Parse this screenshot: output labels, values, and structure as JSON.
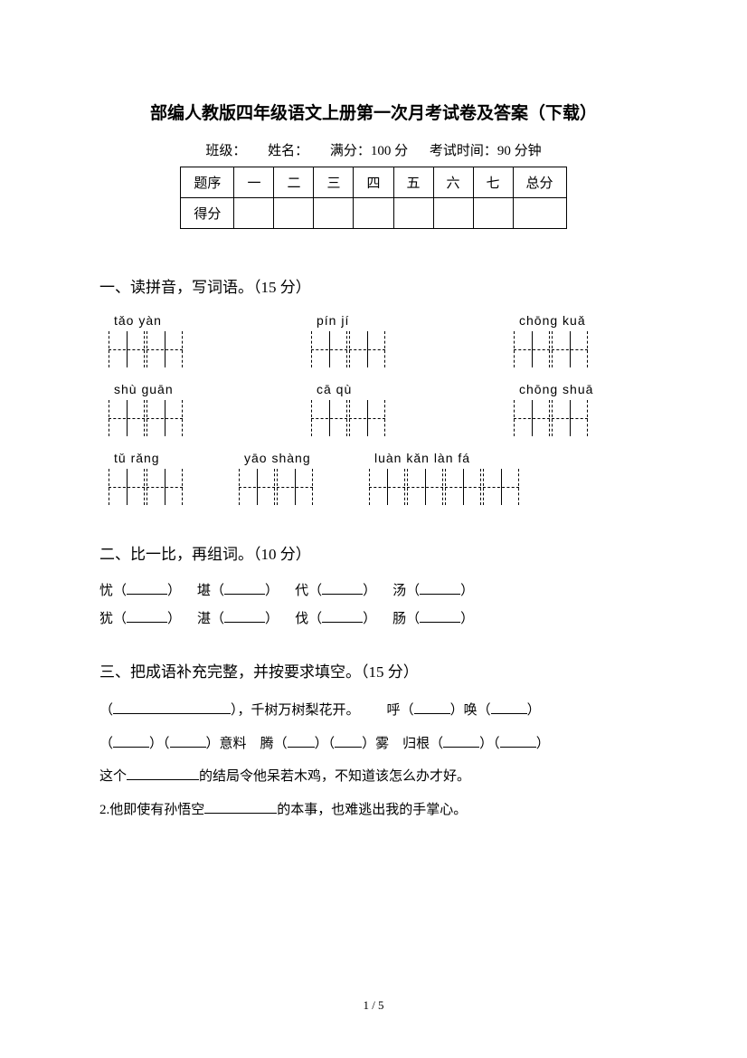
{
  "title": "部编人教版四年级语文上册第一次月考试卷及答案（下载）",
  "meta": {
    "classLabel": "班级：",
    "nameLabel": "姓名：",
    "fullScoreLabel": "满分：100 分",
    "timeLabel": "考试时间：90 分钟"
  },
  "scoreTable": {
    "rowLabels": [
      "题序",
      "得分"
    ],
    "cols": [
      "一",
      "二",
      "三",
      "四",
      "五",
      "六",
      "七"
    ],
    "totalLabel": "总分"
  },
  "section1": {
    "header": "一、读拼音，写词语。（15 分）",
    "rows": [
      [
        {
          "pinyin": "tǎo  yàn",
          "boxes": 2,
          "gapAfter": 140
        },
        {
          "pinyin": "pín  jí",
          "boxes": 2,
          "gapAfter": 140
        },
        {
          "pinyin": "chōng  kuǎ",
          "boxes": 2,
          "gapAfter": 0
        }
      ],
      [
        {
          "pinyin": "shù  guān",
          "boxes": 2,
          "gapAfter": 140
        },
        {
          "pinyin": "cā   qù",
          "boxes": 2,
          "gapAfter": 140
        },
        {
          "pinyin": "chōng  shuā",
          "boxes": 2,
          "gapAfter": 0
        }
      ],
      [
        {
          "pinyin": "tǔ  rǎng",
          "boxes": 2,
          "gapAfter": 60
        },
        {
          "pinyin": "yāo  shàng",
          "boxes": 2,
          "gapAfter": 60
        },
        {
          "pinyin": "luàn  kǎn  làn  fá",
          "boxes": 4,
          "gapAfter": 0
        }
      ]
    ]
  },
  "section2": {
    "header": "二、比一比，再组词。（10 分）",
    "lines": [
      [
        {
          "char": "忧"
        },
        {
          "char": "堪"
        },
        {
          "char": "代"
        },
        {
          "char": "汤"
        }
      ],
      [
        {
          "char": "犹"
        },
        {
          "char": "湛"
        },
        {
          "char": "伐"
        },
        {
          "char": "肠"
        }
      ]
    ]
  },
  "section3": {
    "header": "三、把成语补充完整，并按要求填空。（15 分）",
    "line1a": "，千树万树梨花开。",
    "line1b_pre": "呼",
    "line1b_mid": "唤",
    "line2_parts": {
      "p1": "意料",
      "p2": "腾",
      "p3": "雾",
      "p4": "归根"
    },
    "line3": "这个",
    "line3_tail": "的结局令他呆若木鸡，不知道该怎么办才好。",
    "line4_pre": "2.他即使有孙悟空",
    "line4_tail": "的本事，也难逃出我的手掌心。"
  },
  "footer": "1 / 5",
  "colors": {
    "text": "#000000",
    "background": "#ffffff",
    "border": "#000000"
  }
}
